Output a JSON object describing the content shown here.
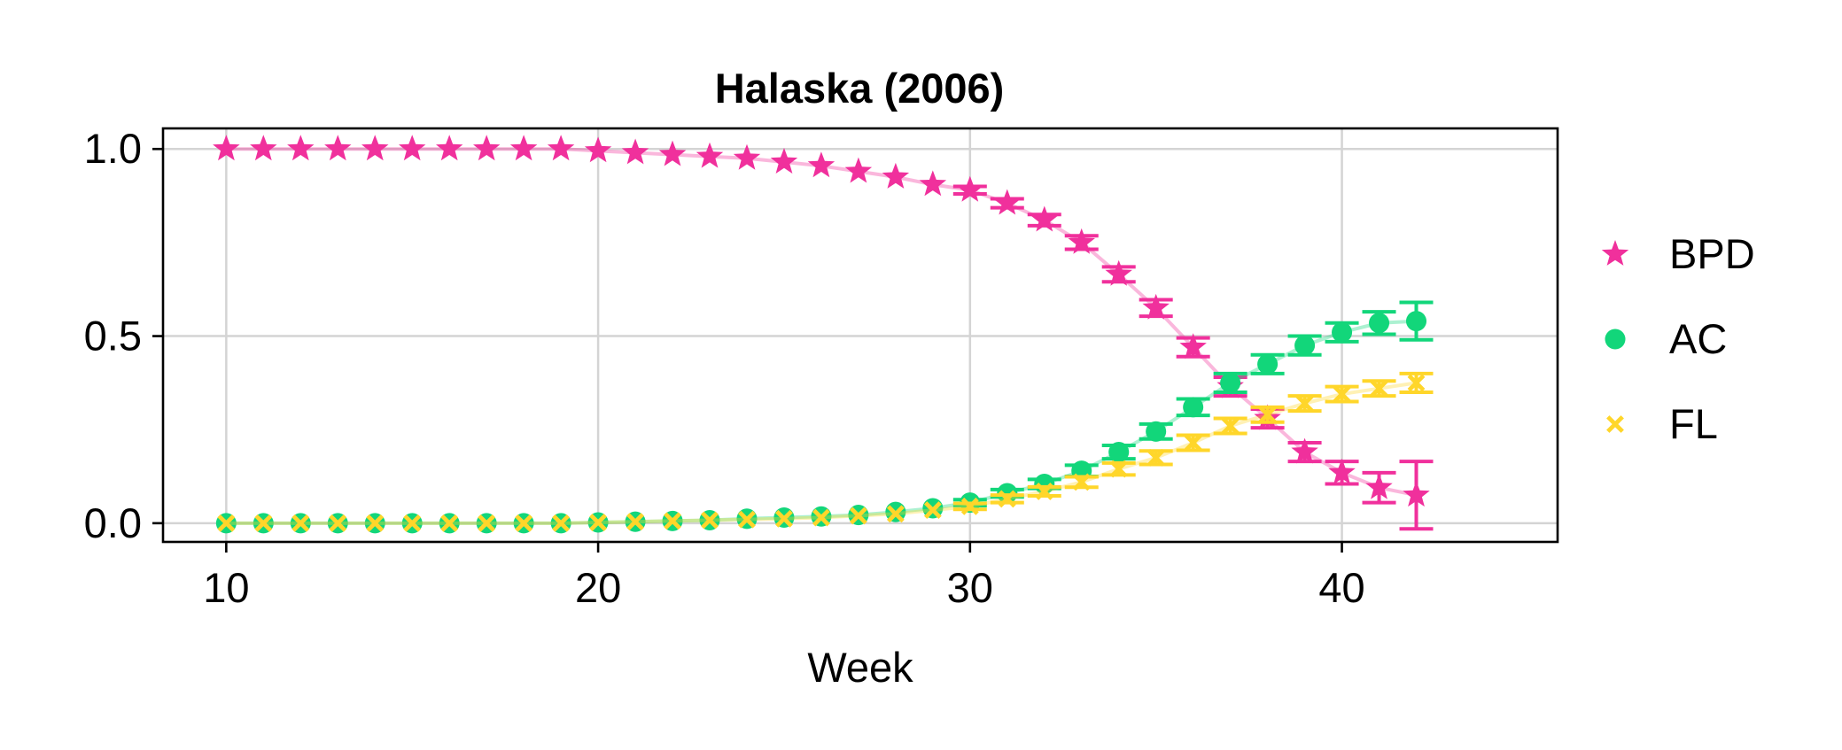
{
  "chart_data": {
    "type": "scatter",
    "title": "Halaska (2006)",
    "xlabel": "Week",
    "ylabel": "",
    "xlim": [
      8.3,
      45.8
    ],
    "ylim": [
      -0.05,
      1.055
    ],
    "xticks": [
      10,
      20,
      30,
      40
    ],
    "yticks": [
      0.0,
      0.5,
      1.0
    ],
    "xtick_labels": [
      "10",
      "20",
      "30",
      "40"
    ],
    "ytick_labels": [
      "0.0",
      "0.5",
      "1.0"
    ],
    "grid": true,
    "legend_position": "right, outside plot",
    "x": [
      10,
      11,
      12,
      13,
      14,
      15,
      16,
      17,
      18,
      19,
      20,
      21,
      22,
      23,
      24,
      25,
      26,
      27,
      28,
      29,
      30,
      31,
      32,
      33,
      34,
      35,
      36,
      37,
      38,
      39,
      40,
      41,
      42
    ],
    "series": [
      {
        "name": "BPD",
        "marker": "star",
        "color": "#F0309C",
        "values": [
          1.0,
          1.0,
          1.0,
          1.0,
          1.0,
          1.0,
          1.0,
          1.0,
          1.0,
          1.0,
          0.995,
          0.99,
          0.985,
          0.98,
          0.975,
          0.965,
          0.955,
          0.94,
          0.925,
          0.905,
          0.89,
          0.855,
          0.81,
          0.75,
          0.665,
          0.575,
          0.47,
          0.365,
          0.28,
          0.19,
          0.135,
          0.095,
          0.075
        ],
        "error": [
          0,
          0,
          0,
          0,
          0,
          0,
          0,
          0,
          0,
          0,
          0,
          0,
          0,
          0,
          0,
          0,
          0,
          0,
          0,
          0,
          0.01,
          0.012,
          0.015,
          0.018,
          0.02,
          0.022,
          0.025,
          0.025,
          0.025,
          0.025,
          0.03,
          0.04,
          0.09
        ]
      },
      {
        "name": "AC",
        "marker": "circle",
        "color": "#12D67A",
        "values": [
          0.0,
          0.0,
          0.0,
          0.0,
          0.0,
          0.0,
          0.0,
          0.0,
          0.0,
          0.0,
          0.002,
          0.004,
          0.006,
          0.008,
          0.012,
          0.015,
          0.018,
          0.022,
          0.03,
          0.04,
          0.055,
          0.08,
          0.105,
          0.14,
          0.19,
          0.245,
          0.31,
          0.375,
          0.425,
          0.475,
          0.51,
          0.535,
          0.54
        ],
        "error": [
          0,
          0,
          0,
          0,
          0,
          0,
          0,
          0,
          0,
          0,
          0,
          0,
          0,
          0,
          0,
          0,
          0,
          0,
          0,
          0,
          0.008,
          0.01,
          0.012,
          0.015,
          0.018,
          0.02,
          0.022,
          0.025,
          0.025,
          0.025,
          0.025,
          0.03,
          0.05
        ]
      },
      {
        "name": "FL",
        "marker": "x",
        "color": "#FFD62A",
        "values": [
          0.0,
          0.0,
          0.0,
          0.0,
          0.0,
          0.0,
          0.0,
          0.0,
          0.0,
          0.0,
          0.002,
          0.004,
          0.006,
          0.008,
          0.01,
          0.012,
          0.015,
          0.02,
          0.025,
          0.035,
          0.045,
          0.065,
          0.085,
          0.11,
          0.145,
          0.175,
          0.215,
          0.26,
          0.29,
          0.32,
          0.345,
          0.36,
          0.375
        ],
        "error": [
          0,
          0,
          0,
          0,
          0,
          0,
          0,
          0,
          0,
          0,
          0,
          0,
          0,
          0,
          0,
          0,
          0,
          0,
          0,
          0,
          0.008,
          0.01,
          0.012,
          0.014,
          0.016,
          0.018,
          0.02,
          0.02,
          0.02,
          0.02,
          0.02,
          0.02,
          0.025
        ]
      }
    ]
  }
}
